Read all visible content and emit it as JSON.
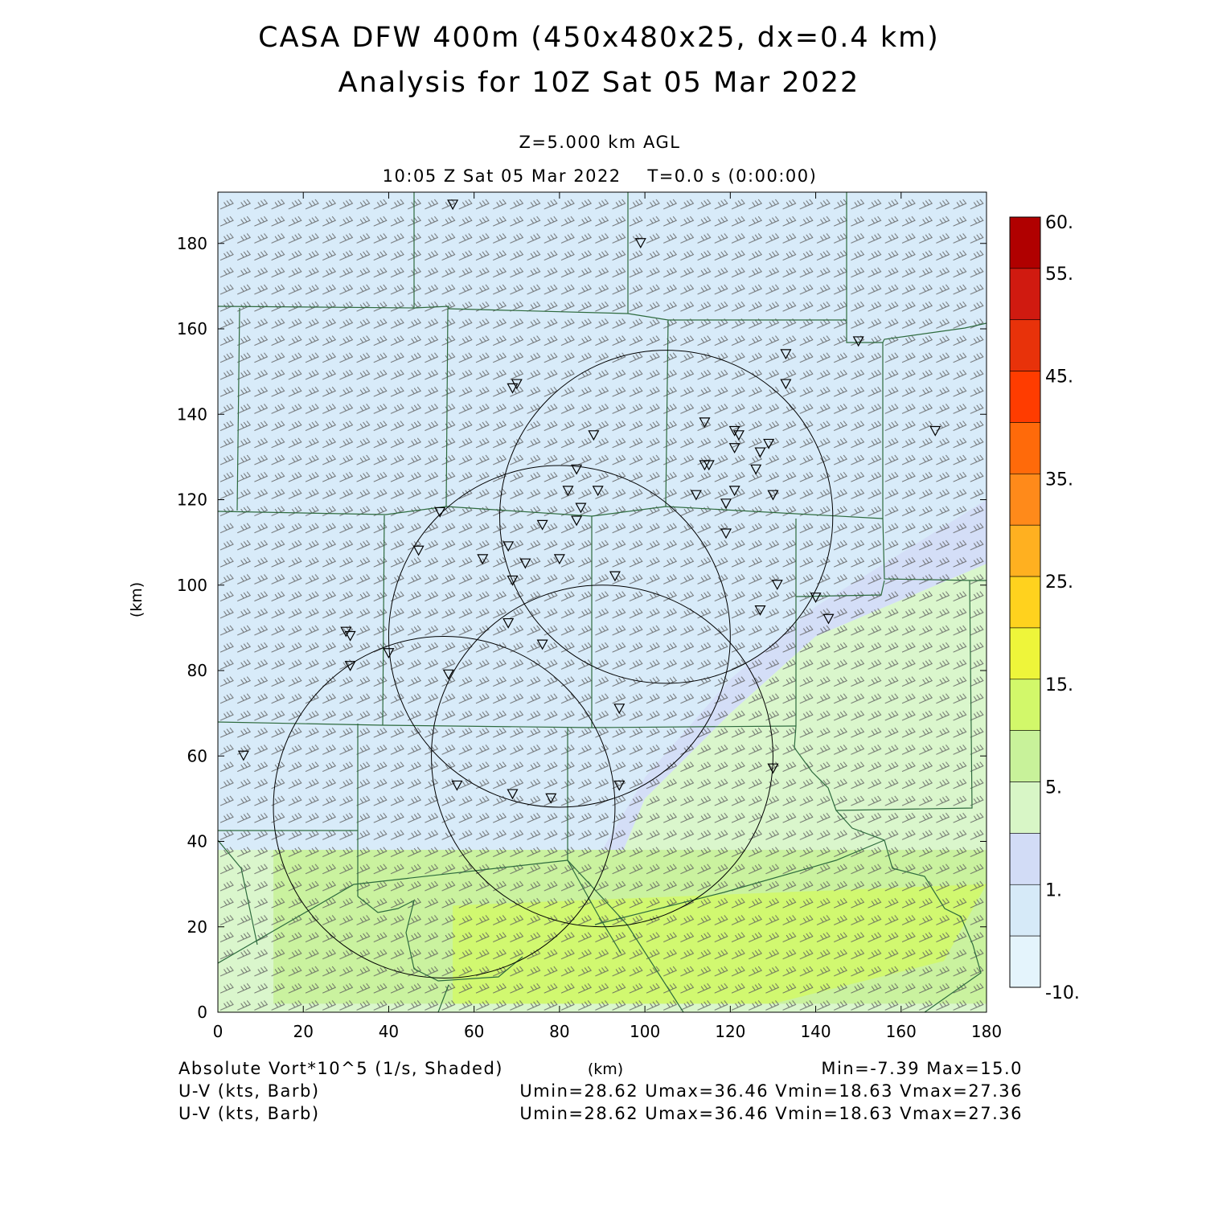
{
  "title": {
    "line1": "CASA DFW 400m (450x480x25, dx=0.4 km)",
    "line2": "Analysis for 10Z Sat 05 Mar 2022"
  },
  "subtitle": {
    "level": "Z=5.000 km AGL",
    "time": "10:05 Z Sat 05 Mar 2022    T=0.0 s (0:00:00)"
  },
  "axes": {
    "ylabel": "(km)",
    "xlabel": "(km)"
  },
  "footer": {
    "field_label": "Absolute Vort*10^5 (1/s, Shaded)",
    "minmax": "Min=-7.39 Max=15.0",
    "barb1_label": "U-V (kts, Barb)",
    "barb1_stats": "Umin=28.62 Umax=36.46 Vmin=18.63 Vmax=27.36",
    "barb2_label": "U-V (kts, Barb)",
    "barb2_stats": "Umin=28.62 Umax=36.46 Vmin=18.63 Vmax=27.36"
  },
  "colors": {
    "lightest_blue": "#e4f4fc",
    "light_blue": "#d6eaf8",
    "lavender": "#d2dcf6",
    "pale_green": "#d8f6c6",
    "green": "#c8f29a",
    "yellow_green": "#d2f86a",
    "county_lines": "#2e6b3e"
  },
  "chart_data": {
    "type": "heatmap",
    "field": "Absolute Vorticity x10^5 (1/s)",
    "xlim": [
      0,
      180
    ],
    "ylim": [
      0,
      192
    ],
    "xticks": [
      0,
      20,
      40,
      60,
      80,
      100,
      120,
      140,
      160,
      180
    ],
    "yticks": [
      0,
      20,
      40,
      60,
      80,
      100,
      120,
      140,
      160,
      180
    ],
    "min": -7.39,
    "max": 15.0,
    "colorbar": {
      "labels": [
        "60.",
        "55.",
        "45.",
        "35.",
        "25.",
        "15.",
        "5.",
        "1.",
        "-10."
      ],
      "colors": [
        "#b00000",
        "#d01a10",
        "#e8320a",
        "#ff3c00",
        "#ff6a0a",
        "#ff8a1a",
        "#ffb020",
        "#ffd21e",
        "#eef53a",
        "#d2f86a",
        "#c8f29a",
        "#d8f6c6",
        "#d2dcf6",
        "#d6eaf8",
        "#e4f4fc"
      ]
    },
    "regions": [
      {
        "name": "light blue",
        "value_range": [
          -10,
          -1
        ],
        "polygon": [
          [
            0,
            192
          ],
          [
            180,
            192
          ],
          [
            180,
            120
          ],
          [
            140,
            95
          ],
          [
            120,
            78
          ],
          [
            100,
            55
          ],
          [
            90,
            38
          ],
          [
            0,
            38
          ]
        ]
      },
      {
        "name": "lavender",
        "value_range": [
          1,
          3
        ],
        "polygon": [
          [
            180,
            120
          ],
          [
            180,
            105
          ],
          [
            140,
            88
          ],
          [
            120,
            70
          ],
          [
            100,
            50
          ],
          [
            95,
            38
          ],
          [
            90,
            38
          ],
          [
            100,
            55
          ],
          [
            120,
            78
          ],
          [
            140,
            95
          ]
        ]
      },
      {
        "name": "pale green",
        "value_range": [
          3,
          7
        ],
        "polygon": [
          [
            0,
            38
          ],
          [
            95,
            38
          ],
          [
            100,
            50
          ],
          [
            120,
            70
          ],
          [
            140,
            88
          ],
          [
            180,
            105
          ],
          [
            180,
            0
          ],
          [
            0,
            0
          ]
        ]
      },
      {
        "name": "green",
        "value_range": [
          7,
          12
        ],
        "polygon": [
          [
            13,
            38
          ],
          [
            180,
            38
          ],
          [
            180,
            2
          ],
          [
            13,
            2
          ]
        ]
      },
      {
        "name": "yellow-green",
        "value_range": [
          12,
          15
        ],
        "polygon": [
          [
            55,
            25
          ],
          [
            180,
            30
          ],
          [
            170,
            12
          ],
          [
            130,
            2
          ],
          [
            55,
            2
          ]
        ]
      }
    ],
    "range_rings_km": [
      {
        "center": [
          105,
          116
        ],
        "radius": 39
      },
      {
        "center": [
          80,
          88
        ],
        "radius": 40
      },
      {
        "center": [
          90,
          60
        ],
        "radius": 40
      },
      {
        "center": [
          53,
          48
        ],
        "radius": 40
      }
    ],
    "station_markers_km": [
      [
        55,
        189
      ],
      [
        99,
        180
      ],
      [
        150,
        157
      ],
      [
        133,
        154
      ],
      [
        133,
        147
      ],
      [
        70,
        147
      ],
      [
        69,
        146
      ],
      [
        114,
        138
      ],
      [
        121,
        136
      ],
      [
        122,
        135
      ],
      [
        88,
        135
      ],
      [
        168,
        136
      ],
      [
        129,
        133
      ],
      [
        121,
        132
      ],
      [
        127,
        131
      ],
      [
        114,
        128
      ],
      [
        115,
        128
      ],
      [
        84,
        127
      ],
      [
        126,
        127
      ],
      [
        82,
        122
      ],
      [
        89,
        122
      ],
      [
        112,
        121
      ],
      [
        121,
        122
      ],
      [
        130,
        121
      ],
      [
        119,
        119
      ],
      [
        85,
        118
      ],
      [
        84,
        115
      ],
      [
        52,
        117
      ],
      [
        76,
        114
      ],
      [
        119,
        112
      ],
      [
        47,
        108
      ],
      [
        62,
        106
      ],
      [
        68,
        109
      ],
      [
        72,
        105
      ],
      [
        80,
        106
      ],
      [
        69,
        101
      ],
      [
        93,
        102
      ],
      [
        131,
        100
      ],
      [
        140,
        97
      ],
      [
        127,
        94
      ],
      [
        143,
        92
      ],
      [
        68,
        91
      ],
      [
        30,
        89
      ],
      [
        31,
        88
      ],
      [
        76,
        86
      ],
      [
        40,
        84
      ],
      [
        31,
        81
      ],
      [
        54,
        79
      ],
      [
        94,
        71
      ],
      [
        6,
        60
      ],
      [
        130,
        57
      ],
      [
        56,
        53
      ],
      [
        69,
        51
      ],
      [
        94,
        53
      ],
      [
        78,
        50
      ]
    ],
    "wind_barbs": {
      "units": "kts",
      "u_range": [
        28.62,
        36.46
      ],
      "v_range": [
        18.63,
        27.36
      ],
      "direction": "from southwest"
    }
  }
}
